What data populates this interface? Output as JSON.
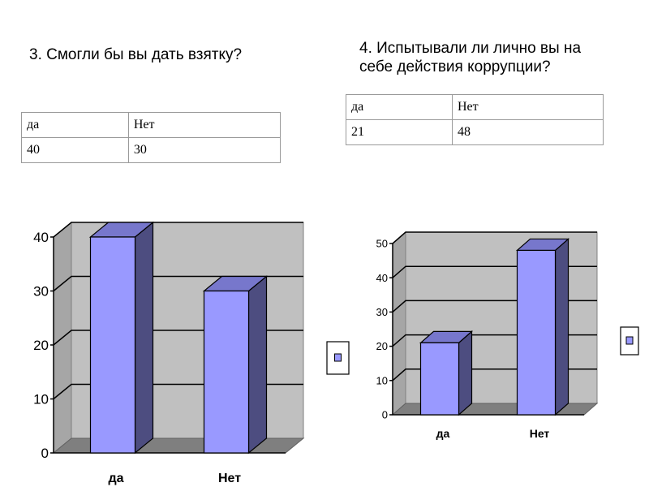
{
  "question1": "3. Смогли бы вы дать взятку?",
  "question2_line1": "4. Испытывали ли лично вы на",
  "question2_line2": "себе действия коррупции?",
  "table1": {
    "headers": [
      "да",
      "Нет"
    ],
    "values": [
      "40",
      "30"
    ]
  },
  "table2": {
    "headers": [
      "да",
      "Нет"
    ],
    "values": [
      "21",
      "48"
    ]
  },
  "colors": {
    "bar_front": "#9999ff",
    "bar_side": "#4d4d80",
    "bar_top": "#7777cc",
    "wall": "#c0c0c0",
    "floor": "#7f7f7f"
  },
  "chart_data": [
    {
      "type": "bar",
      "categories": [
        "да",
        "Нет"
      ],
      "values": [
        40,
        30
      ],
      "ylim": [
        0,
        40
      ],
      "yticks": [
        "0",
        "10",
        "20",
        "30",
        "40"
      ],
      "grid": true,
      "legend": "right"
    },
    {
      "type": "bar",
      "categories": [
        "да",
        "Нет"
      ],
      "values": [
        21,
        48
      ],
      "ylim": [
        0,
        50
      ],
      "yticks": [
        "0",
        "10",
        "20",
        "30",
        "40",
        "50"
      ],
      "grid": true,
      "legend": "right"
    }
  ]
}
